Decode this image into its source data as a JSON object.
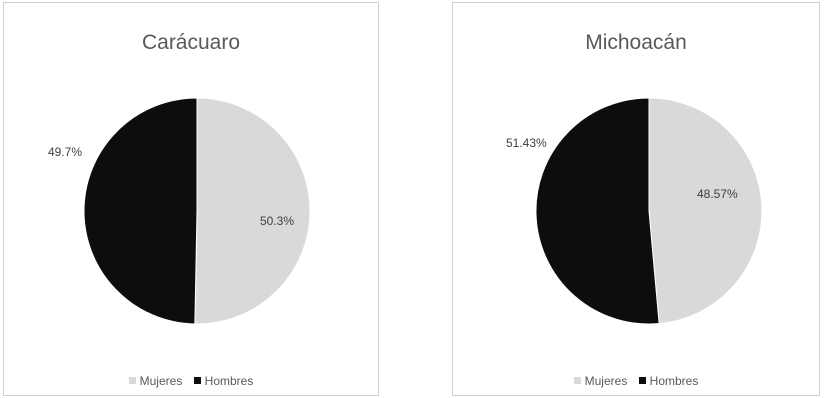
{
  "chart_data": [
    {
      "type": "pie",
      "title": "Carácuaro",
      "categories": [
        "Mujeres",
        "Hombres"
      ],
      "values": [
        50.3,
        49.7
      ],
      "labels": [
        "50.3%",
        "49.7%"
      ],
      "colors": [
        "#d9d9d9",
        "#0d0d0d"
      ],
      "legend": "bottom"
    },
    {
      "type": "pie",
      "title": "Michoacán",
      "categories": [
        "Mujeres",
        "Hombres"
      ],
      "values": [
        48.57,
        51.43
      ],
      "labels": [
        "48.57%",
        "51.43%"
      ],
      "colors": [
        "#d9d9d9",
        "#0d0d0d"
      ],
      "legend": "bottom"
    }
  ]
}
